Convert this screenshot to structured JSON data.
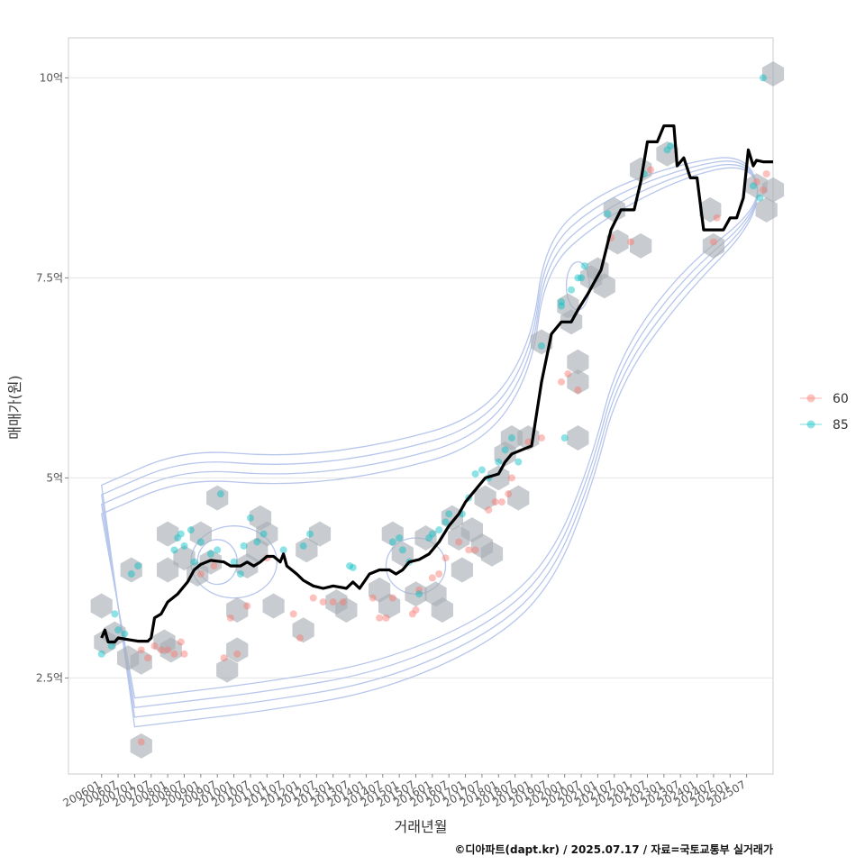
{
  "chart_data": {
    "type": "scatter",
    "xlabel": "거래년월",
    "ylabel": "매매가(원)",
    "caption": "©디아파트(dapt.kr) / 2025.07.17 / 자료=국토교통부 실거래가",
    "x_ticks": [
      "200601",
      "200607",
      "200701",
      "200707",
      "200801",
      "200807",
      "200901",
      "200907",
      "201001",
      "201007",
      "201101",
      "201107",
      "201201",
      "201207",
      "201301",
      "201307",
      "201401",
      "201407",
      "201501",
      "201507",
      "201601",
      "201607",
      "201701",
      "201707",
      "201801",
      "201807",
      "201901",
      "201907",
      "202001",
      "202007",
      "202101",
      "202107",
      "202201",
      "202207",
      "202301",
      "202307",
      "202401",
      "202407",
      "202501",
      "202507"
    ],
    "y_ticks": [
      {
        "value": 2.5,
        "label": "2.5억"
      },
      {
        "value": 5,
        "label": "5억"
      },
      {
        "value": 7.5,
        "label": "7.5억"
      },
      {
        "value": 10,
        "label": "10억"
      }
    ],
    "ylim": [
      1.3,
      10.5
    ],
    "xlim": [
      2005.0,
      2026.3
    ],
    "grid": true,
    "legend_position": "right",
    "legend": [
      {
        "name": "60",
        "color": "#F8766D"
      },
      {
        "name": "85",
        "color": "#00BFC4"
      }
    ],
    "trend_line": {
      "color": "#000000",
      "points": [
        [
          2006.0,
          3.0
        ],
        [
          2006.1,
          3.1
        ],
        [
          2006.2,
          2.95
        ],
        [
          2006.4,
          2.95
        ],
        [
          2006.5,
          3.0
        ],
        [
          2006.8,
          2.98
        ],
        [
          2007.1,
          2.96
        ],
        [
          2007.4,
          2.96
        ],
        [
          2007.5,
          3.0
        ],
        [
          2007.6,
          3.25
        ],
        [
          2007.8,
          3.3
        ],
        [
          2008.0,
          3.45
        ],
        [
          2008.3,
          3.55
        ],
        [
          2008.6,
          3.7
        ],
        [
          2008.8,
          3.85
        ],
        [
          2009.0,
          3.92
        ],
        [
          2009.3,
          3.97
        ],
        [
          2009.5,
          3.96
        ],
        [
          2009.7,
          3.95
        ],
        [
          2009.9,
          3.9
        ],
        [
          2010.2,
          3.9
        ],
        [
          2010.4,
          3.95
        ],
        [
          2010.6,
          3.9
        ],
        [
          2010.8,
          3.95
        ],
        [
          2011.0,
          4.02
        ],
        [
          2011.2,
          4.02
        ],
        [
          2011.4,
          3.95
        ],
        [
          2011.5,
          4.05
        ],
        [
          2011.6,
          3.9
        ],
        [
          2011.9,
          3.8
        ],
        [
          2012.1,
          3.72
        ],
        [
          2012.4,
          3.65
        ],
        [
          2012.7,
          3.62
        ],
        [
          2013.0,
          3.65
        ],
        [
          2013.4,
          3.62
        ],
        [
          2013.6,
          3.7
        ],
        [
          2013.8,
          3.62
        ],
        [
          2014.1,
          3.8
        ],
        [
          2014.4,
          3.85
        ],
        [
          2014.7,
          3.85
        ],
        [
          2014.9,
          3.8
        ],
        [
          2015.1,
          3.85
        ],
        [
          2015.3,
          3.95
        ],
        [
          2015.6,
          3.98
        ],
        [
          2015.9,
          4.05
        ],
        [
          2016.2,
          4.2
        ],
        [
          2016.5,
          4.4
        ],
        [
          2016.8,
          4.55
        ],
        [
          2017.0,
          4.7
        ],
        [
          2017.2,
          4.8
        ],
        [
          2017.4,
          4.9
        ],
        [
          2017.6,
          5.0
        ],
        [
          2018.0,
          5.05
        ],
        [
          2018.2,
          5.2
        ],
        [
          2018.4,
          5.3
        ],
        [
          2018.7,
          5.35
        ],
        [
          2019.0,
          5.4
        ],
        [
          2019.3,
          6.2
        ],
        [
          2019.6,
          6.8
        ],
        [
          2019.9,
          6.95
        ],
        [
          2020.2,
          6.95
        ],
        [
          2020.4,
          7.1
        ],
        [
          2020.7,
          7.3
        ],
        [
          2020.9,
          7.45
        ],
        [
          2021.1,
          7.6
        ],
        [
          2021.4,
          8.1
        ],
        [
          2021.7,
          8.35
        ],
        [
          2022.1,
          8.35
        ],
        [
          2022.3,
          8.7
        ],
        [
          2022.5,
          9.2
        ],
        [
          2022.8,
          9.2
        ],
        [
          2023.0,
          9.4
        ],
        [
          2023.3,
          9.4
        ],
        [
          2023.4,
          8.9
        ],
        [
          2023.6,
          9.0
        ],
        [
          2023.8,
          8.75
        ],
        [
          2024.0,
          8.75
        ],
        [
          2024.2,
          8.1
        ],
        [
          2024.8,
          8.1
        ],
        [
          2025.0,
          8.25
        ],
        [
          2025.2,
          8.25
        ],
        [
          2025.4,
          8.5
        ],
        [
          2025.55,
          9.1
        ],
        [
          2025.7,
          8.9
        ],
        [
          2025.8,
          8.97
        ],
        [
          2026.0,
          8.95
        ],
        [
          2026.3,
          8.95
        ]
      ]
    },
    "hexbins": [
      [
        2006.0,
        3.4
      ],
      [
        2006.4,
        3.05
      ],
      [
        2006.1,
        2.95
      ],
      [
        2006.9,
        3.85
      ],
      [
        2006.8,
        2.75
      ],
      [
        2007.2,
        2.7
      ],
      [
        2007.2,
        1.65
      ],
      [
        2007.9,
        2.95
      ],
      [
        2008.1,
        2.85
      ],
      [
        2008.0,
        3.85
      ],
      [
        2008.0,
        4.3
      ],
      [
        2008.5,
        4.0
      ],
      [
        2008.9,
        3.8
      ],
      [
        2009.0,
        4.3
      ],
      [
        2009.3,
        3.95
      ],
      [
        2009.5,
        4.75
      ],
      [
        2009.8,
        2.6
      ],
      [
        2010.1,
        2.85
      ],
      [
        2010.1,
        3.35
      ],
      [
        2010.4,
        3.9
      ],
      [
        2010.7,
        4.1
      ],
      [
        2010.8,
        4.5
      ],
      [
        2011.0,
        4.3
      ],
      [
        2011.2,
        3.4
      ],
      [
        2012.1,
        3.1
      ],
      [
        2012.2,
        4.1
      ],
      [
        2012.6,
        4.3
      ],
      [
        2013.1,
        3.45
      ],
      [
        2013.4,
        3.35
      ],
      [
        2014.4,
        3.6
      ],
      [
        2014.7,
        3.4
      ],
      [
        2014.8,
        4.3
      ],
      [
        2015.1,
        4.05
      ],
      [
        2015.5,
        3.55
      ],
      [
        2015.8,
        4.25
      ],
      [
        2016.1,
        3.55
      ],
      [
        2016.3,
        3.35
      ],
      [
        2016.6,
        4.5
      ],
      [
        2016.8,
        4.25
      ],
      [
        2016.9,
        3.85
      ],
      [
        2017.2,
        4.35
      ],
      [
        2017.5,
        4.15
      ],
      [
        2017.6,
        4.75
      ],
      [
        2017.8,
        4.05
      ],
      [
        2018.0,
        5.0
      ],
      [
        2018.2,
        5.3
      ],
      [
        2018.4,
        5.5
      ],
      [
        2018.6,
        4.75
      ],
      [
        2018.9,
        5.5
      ],
      [
        2019.3,
        6.7
      ],
      [
        2020.1,
        7.15
      ],
      [
        2020.2,
        6.95
      ],
      [
        2020.4,
        6.45
      ],
      [
        2020.4,
        6.2
      ],
      [
        2020.4,
        5.5
      ],
      [
        2020.8,
        7.5
      ],
      [
        2021.0,
        7.6
      ],
      [
        2021.2,
        7.4
      ],
      [
        2021.5,
        8.35
      ],
      [
        2021.6,
        7.95
      ],
      [
        2022.3,
        7.9
      ],
      [
        2022.3,
        8.85
      ],
      [
        2023.1,
        9.05
      ],
      [
        2024.4,
        8.35
      ],
      [
        2024.5,
        7.9
      ],
      [
        2025.8,
        8.65
      ],
      [
        2026.1,
        8.35
      ],
      [
        2026.3,
        8.6
      ],
      [
        2026.3,
        10.05
      ]
    ],
    "series": [
      {
        "name": "60",
        "points": [
          [
            2007.2,
            1.7
          ],
          [
            2007.2,
            2.85
          ],
          [
            2007.4,
            2.75
          ],
          [
            2007.6,
            2.9
          ],
          [
            2007.8,
            2.85
          ],
          [
            2008.0,
            2.85
          ],
          [
            2008.2,
            2.8
          ],
          [
            2008.4,
            2.95
          ],
          [
            2008.5,
            2.8
          ],
          [
            2009.0,
            3.8
          ],
          [
            2009.4,
            3.9
          ],
          [
            2009.7,
            2.75
          ],
          [
            2009.9,
            3.25
          ],
          [
            2010.1,
            2.8
          ],
          [
            2010.4,
            3.4
          ],
          [
            2011.0,
            4.0
          ],
          [
            2011.8,
            3.3
          ],
          [
            2012.0,
            3.0
          ],
          [
            2012.4,
            3.5
          ],
          [
            2012.7,
            3.45
          ],
          [
            2013.0,
            3.45
          ],
          [
            2013.3,
            3.45
          ],
          [
            2014.2,
            3.5
          ],
          [
            2014.4,
            3.25
          ],
          [
            2014.6,
            3.25
          ],
          [
            2014.8,
            3.5
          ],
          [
            2015.4,
            3.3
          ],
          [
            2015.5,
            3.35
          ],
          [
            2015.6,
            3.6
          ],
          [
            2016.0,
            3.75
          ],
          [
            2016.2,
            3.8
          ],
          [
            2016.4,
            4.0
          ],
          [
            2016.8,
            4.2
          ],
          [
            2017.1,
            4.1
          ],
          [
            2017.3,
            4.1
          ],
          [
            2017.7,
            4.6
          ],
          [
            2017.9,
            4.7
          ],
          [
            2018.1,
            4.7
          ],
          [
            2018.3,
            4.8
          ],
          [
            2018.4,
            5.0
          ],
          [
            2018.9,
            5.45
          ],
          [
            2019.3,
            5.5
          ],
          [
            2019.9,
            6.2
          ],
          [
            2020.1,
            6.3
          ],
          [
            2020.4,
            6.1
          ],
          [
            2021.4,
            8.0
          ],
          [
            2022.0,
            7.95
          ],
          [
            2022.6,
            8.85
          ],
          [
            2024.5,
            7.95
          ],
          [
            2024.6,
            8.25
          ],
          [
            2025.8,
            8.7
          ],
          [
            2026.0,
            8.6
          ],
          [
            2026.1,
            8.8
          ]
        ]
      },
      {
        "name": "85",
        "points": [
          [
            2006.0,
            2.8
          ],
          [
            2006.3,
            2.9
          ],
          [
            2006.4,
            3.3
          ],
          [
            2006.5,
            3.1
          ],
          [
            2006.7,
            3.05
          ],
          [
            2006.9,
            3.8
          ],
          [
            2007.1,
            3.9
          ],
          [
            2008.2,
            4.1
          ],
          [
            2008.3,
            4.25
          ],
          [
            2008.4,
            4.3
          ],
          [
            2008.5,
            4.15
          ],
          [
            2008.7,
            4.35
          ],
          [
            2008.8,
            3.95
          ],
          [
            2009.0,
            4.2
          ],
          [
            2009.3,
            4.05
          ],
          [
            2009.5,
            4.1
          ],
          [
            2009.6,
            4.8
          ],
          [
            2010.0,
            3.95
          ],
          [
            2010.2,
            3.8
          ],
          [
            2010.3,
            4.15
          ],
          [
            2010.5,
            4.5
          ],
          [
            2010.7,
            4.2
          ],
          [
            2010.9,
            4.3
          ],
          [
            2011.5,
            4.1
          ],
          [
            2012.1,
            4.15
          ],
          [
            2012.3,
            4.3
          ],
          [
            2013.5,
            3.9
          ],
          [
            2013.6,
            3.88
          ],
          [
            2014.8,
            4.2
          ],
          [
            2015.0,
            4.25
          ],
          [
            2015.1,
            4.1
          ],
          [
            2015.3,
            3.95
          ],
          [
            2015.6,
            3.55
          ],
          [
            2015.9,
            4.25
          ],
          [
            2016.0,
            4.3
          ],
          [
            2016.2,
            4.35
          ],
          [
            2016.4,
            4.45
          ],
          [
            2016.5,
            4.55
          ],
          [
            2016.9,
            4.55
          ],
          [
            2017.1,
            4.75
          ],
          [
            2017.3,
            5.05
          ],
          [
            2017.5,
            5.1
          ],
          [
            2017.7,
            5.0
          ],
          [
            2018.0,
            5.2
          ],
          [
            2018.2,
            5.35
          ],
          [
            2018.4,
            5.5
          ],
          [
            2018.6,
            5.2
          ],
          [
            2019.3,
            6.65
          ],
          [
            2019.9,
            7.15
          ],
          [
            2019.9,
            7.2
          ],
          [
            2020.0,
            5.5
          ],
          [
            2020.2,
            7.35
          ],
          [
            2020.4,
            7.5
          ],
          [
            2020.5,
            7.5
          ],
          [
            2020.6,
            7.65
          ],
          [
            2021.3,
            8.3
          ],
          [
            2022.4,
            8.8
          ],
          [
            2023.1,
            9.1
          ],
          [
            2023.2,
            9.15
          ],
          [
            2025.7,
            8.65
          ],
          [
            2025.9,
            8.5
          ],
          [
            2026.0,
            10.0
          ]
        ]
      }
    ],
    "density_contours": [
      {
        "cx": 2009.5,
        "cy": 3.95,
        "rx": 0.6,
        "ry": 0.28
      },
      {
        "cx": 2010.0,
        "cy": 3.95,
        "rx": 1.3,
        "ry": 0.45
      },
      {
        "cx": 2015.5,
        "cy": 3.9,
        "rx": 0.9,
        "ry": 0.35
      },
      {
        "cx": 2020.4,
        "cy": 7.4,
        "rx": 0.35,
        "ry": 0.3
      }
    ]
  }
}
